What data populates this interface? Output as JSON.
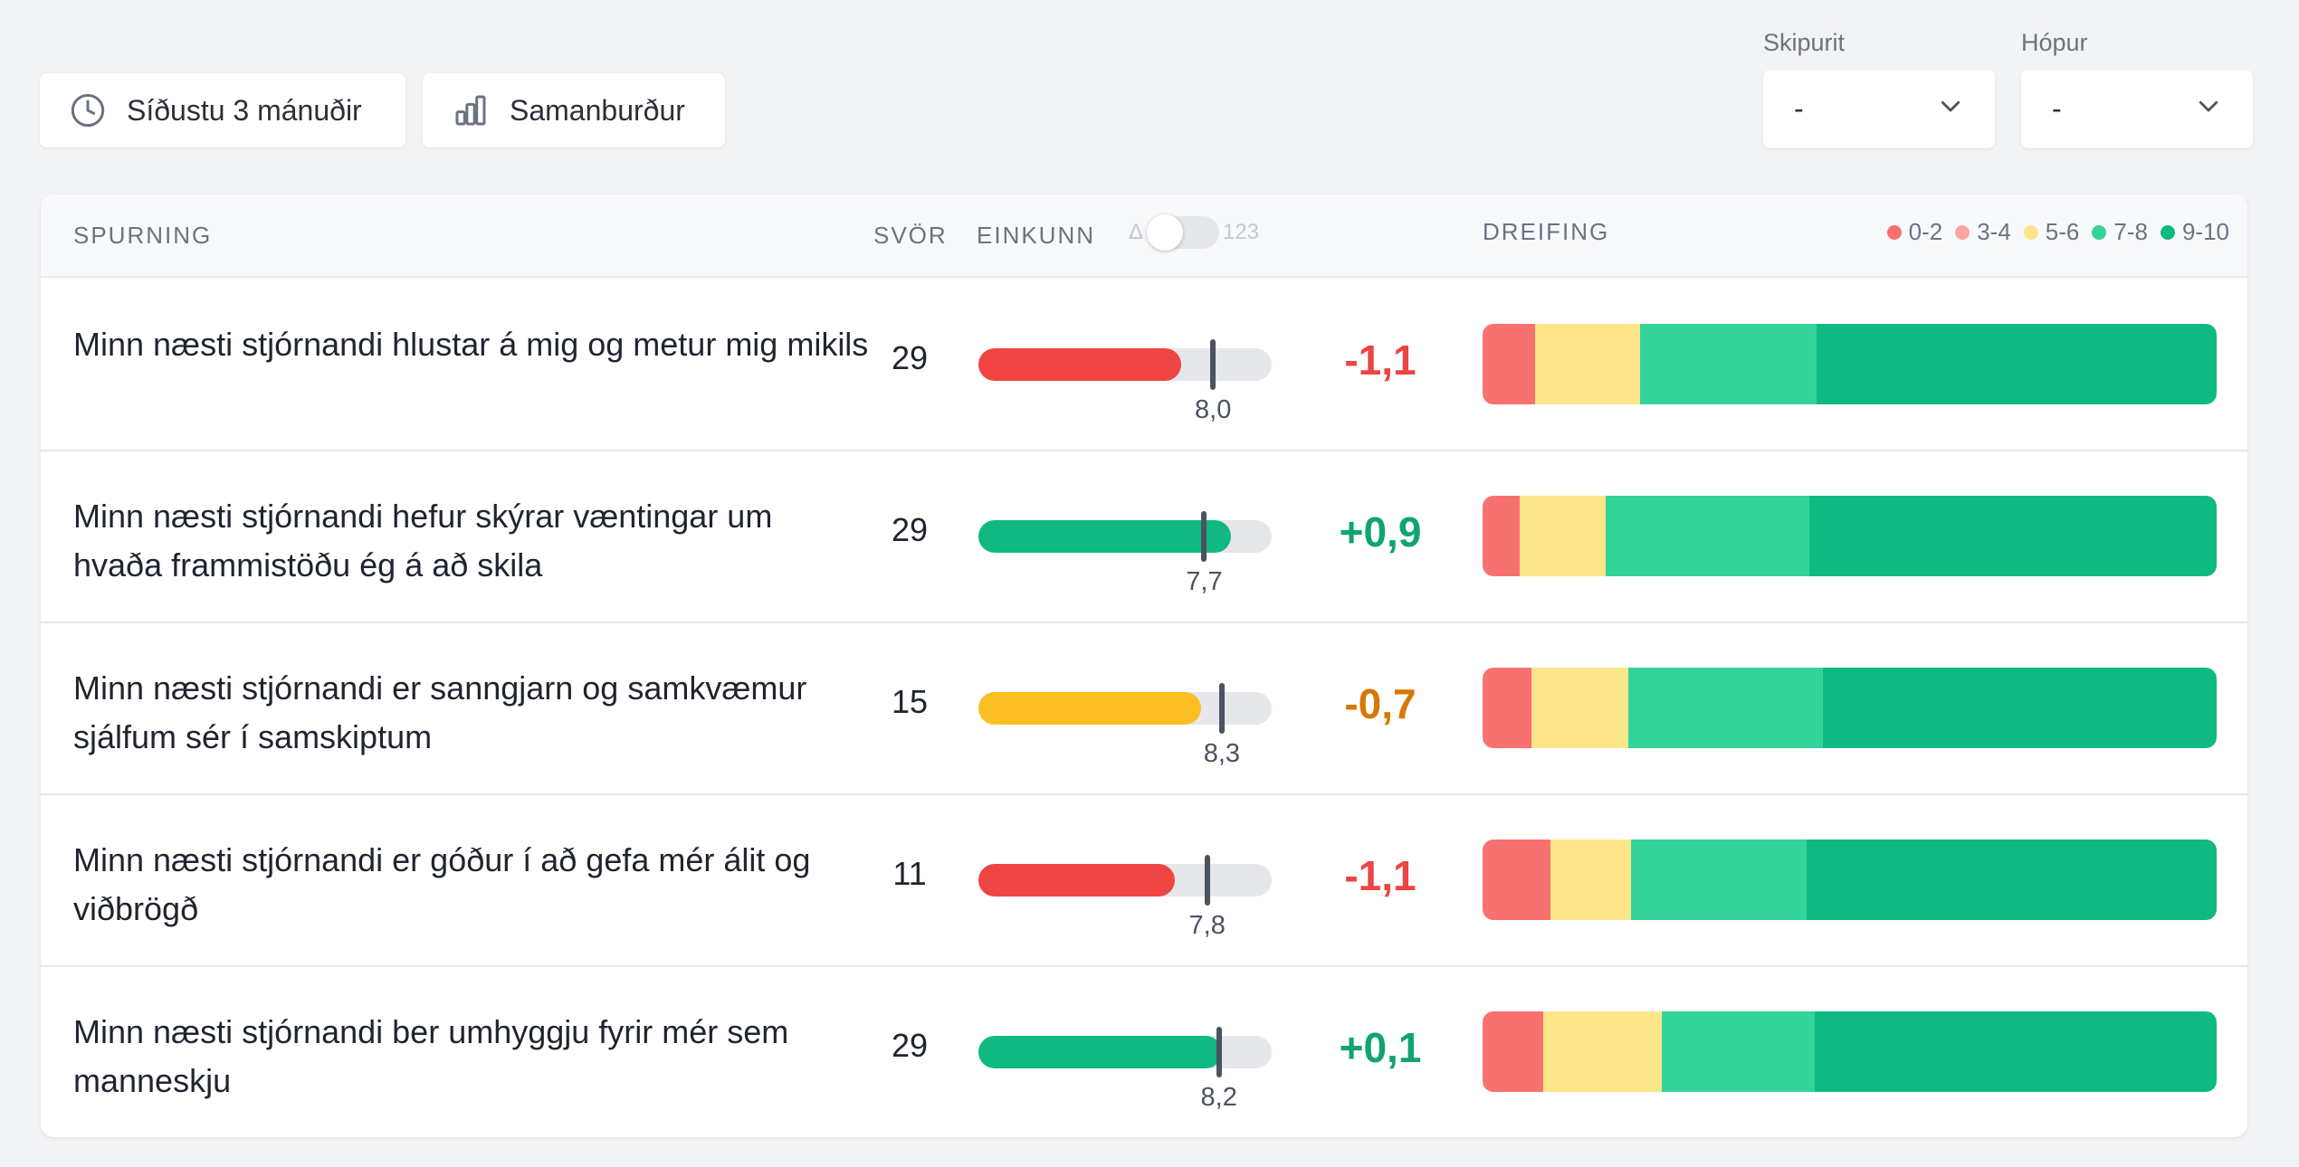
{
  "toolbar": {
    "period_label": "Síðustu 3 mánuðir",
    "compare_label": "Samanburður"
  },
  "filters": {
    "org_label": "Skipurit",
    "org_value": "-",
    "group_label": "Hópur",
    "group_value": "-"
  },
  "table": {
    "headers": {
      "question": "SPURNING",
      "responses": "SVÖR",
      "score": "EINKUNN",
      "distribution": "DREIFING"
    },
    "toggle": {
      "left": "Δ",
      "right": "123",
      "state": "delta"
    },
    "legend": [
      {
        "label": "0-2",
        "color": "#f87171"
      },
      {
        "label": "3-4",
        "color": "#fca5a5"
      },
      {
        "label": "5-6",
        "color": "#fde68a"
      },
      {
        "label": "7-8",
        "color": "#34d399"
      },
      {
        "label": "9-10",
        "color": "#10b981"
      }
    ],
    "rows": [
      {
        "question": "Minn næsti stjórnandi hlustar á mig og metur mig mikils",
        "responses": "29",
        "score_fraction": 0.69,
        "fill_color": "#ef4444",
        "benchmark": "8,0",
        "benchmark_fraction": 0.8,
        "delta": "-1,1",
        "delta_color": "#ef4444",
        "distribution": [
          {
            "band": "0-2",
            "share": 0.072
          },
          {
            "band": "5-6",
            "share": 0.142
          },
          {
            "band": "7-8",
            "share": 0.241
          },
          {
            "band": "9-10",
            "share": 0.545
          }
        ]
      },
      {
        "question": "Minn næsti stjórnandi hefur skýrar væntingar um hvaða frammistöðu ég á að skila",
        "responses": "29",
        "score_fraction": 0.86,
        "fill_color": "#10b981",
        "benchmark": "7,7",
        "benchmark_fraction": 0.77,
        "delta": "+0,9",
        "delta_color": "#10a46f",
        "distribution": [
          {
            "band": "0-2",
            "share": 0.05
          },
          {
            "band": "5-6",
            "share": 0.118
          },
          {
            "band": "7-8",
            "share": 0.277
          },
          {
            "band": "9-10",
            "share": 0.555
          }
        ]
      },
      {
        "question": "Minn næsti stjórnandi er sanngjarn og samkvæmur sjálfum sér í samskiptum",
        "responses": "15",
        "score_fraction": 0.76,
        "fill_color": "#fbbf24",
        "benchmark": "8,3",
        "benchmark_fraction": 0.83,
        "delta": "-0,7",
        "delta_color": "#d97706",
        "distribution": [
          {
            "band": "0-2",
            "share": 0.066
          },
          {
            "band": "5-6",
            "share": 0.133
          },
          {
            "band": "7-8",
            "share": 0.265
          },
          {
            "band": "9-10",
            "share": 0.536
          }
        ]
      },
      {
        "question": "Minn næsti stjórnandi er góður í að gefa mér álit og viðbrögð",
        "responses": "11",
        "score_fraction": 0.67,
        "fill_color": "#ef4444",
        "benchmark": "7,8",
        "benchmark_fraction": 0.78,
        "delta": "-1,1",
        "delta_color": "#ef4444",
        "distribution": [
          {
            "band": "0-2",
            "share": 0.092
          },
          {
            "band": "5-6",
            "share": 0.11
          },
          {
            "band": "7-8",
            "share": 0.24
          },
          {
            "band": "9-10",
            "share": 0.558
          }
        ]
      },
      {
        "question": "Minn næsti stjórnandi ber umhyggju fyrir mér sem manneskju",
        "responses": "29",
        "score_fraction": 0.83,
        "fill_color": "#10b981",
        "benchmark": "8,2",
        "benchmark_fraction": 0.82,
        "delta": "+0,1",
        "delta_color": "#10a46f",
        "distribution": [
          {
            "band": "0-2",
            "share": 0.082
          },
          {
            "band": "5-6",
            "share": 0.162
          },
          {
            "band": "7-8",
            "share": 0.208
          },
          {
            "band": "9-10",
            "share": 0.548
          }
        ]
      }
    ]
  }
}
